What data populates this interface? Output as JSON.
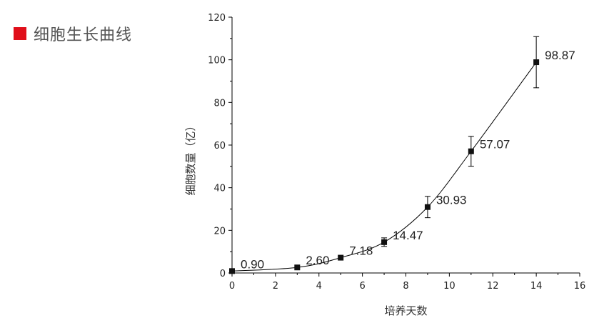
{
  "header": {
    "title": "细胞生长曲线",
    "accent_color": "#e00f1a"
  },
  "chart_data": {
    "type": "scatter",
    "title": "",
    "xlabel": "培养天数",
    "ylabel": "细胞数量（亿）",
    "xlim": [
      0,
      16
    ],
    "ylim": [
      0,
      120
    ],
    "xticks": [
      "0",
      "2",
      "4",
      "6",
      "8",
      "10",
      "12",
      "14",
      "16"
    ],
    "yticks": [
      "0",
      "20",
      "40",
      "60",
      "80",
      "100",
      "120"
    ],
    "grid": false,
    "trendline": "smooth curve through points",
    "series": [
      {
        "x": [
          0,
          3,
          5,
          7,
          9,
          11,
          14
        ],
        "y": [
          0.9,
          2.6,
          7.18,
          14.47,
          30.93,
          57.07,
          98.87
        ],
        "error": [
          0,
          0,
          0,
          2,
          5,
          7,
          12
        ],
        "labels": [
          "0.90",
          "2.60",
          "7.18",
          "14.47",
          "30.93",
          "57.07",
          "98.87"
        ]
      }
    ]
  }
}
